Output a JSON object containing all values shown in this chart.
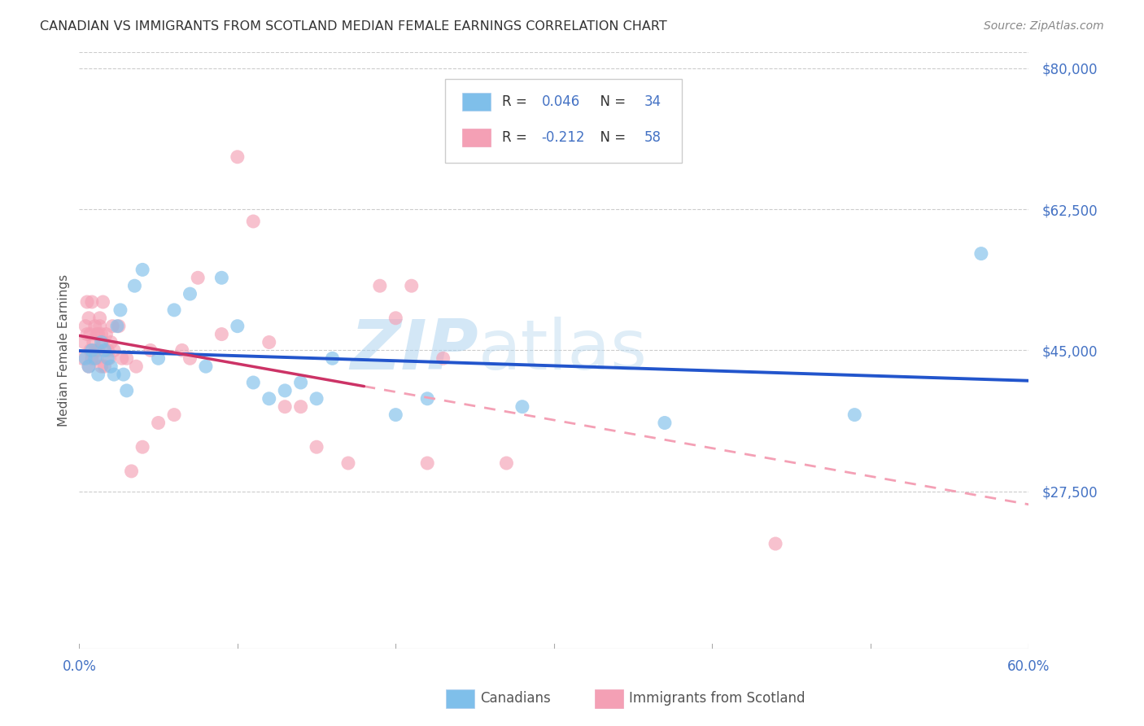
{
  "title": "CANADIAN VS IMMIGRANTS FROM SCOTLAND MEDIAN FEMALE EARNINGS CORRELATION CHART",
  "source": "Source: ZipAtlas.com",
  "ylabel": "Median Female Earnings",
  "xlim": [
    0,
    0.6
  ],
  "ylim": [
    8000,
    82000
  ],
  "yticks": [
    27500,
    45000,
    62500,
    80000
  ],
  "ytick_labels": [
    "$27,500",
    "$45,000",
    "$62,500",
    "$80,000"
  ],
  "xticks": [
    0.0,
    0.1,
    0.2,
    0.3,
    0.4,
    0.5,
    0.6
  ],
  "xtick_labels": [
    "0.0%",
    "",
    "",
    "",
    "",
    "",
    "60.0%"
  ],
  "legend_r1": "R = 0.046",
  "legend_n1": "N = 34",
  "legend_r2": "R = -0.212",
  "legend_n2": "N = 58",
  "blue_color": "#7fbfea",
  "pink_color": "#f4a0b5",
  "blue_line_color": "#2255cc",
  "pink_line_color": "#cc3366",
  "pink_dash_color": "#f4a0b5",
  "watermark": "ZIPatlas",
  "canadians_x": [
    0.004,
    0.006,
    0.008,
    0.01,
    0.012,
    0.014,
    0.016,
    0.018,
    0.02,
    0.022,
    0.024,
    0.026,
    0.028,
    0.03,
    0.035,
    0.04,
    0.05,
    0.06,
    0.07,
    0.08,
    0.09,
    0.1,
    0.11,
    0.12,
    0.13,
    0.14,
    0.15,
    0.16,
    0.2,
    0.22,
    0.28,
    0.37,
    0.49,
    0.57
  ],
  "canadians_y": [
    44000,
    43000,
    45000,
    44000,
    42000,
    46000,
    45000,
    44000,
    43000,
    42000,
    48000,
    50000,
    42000,
    40000,
    53000,
    55000,
    44000,
    50000,
    52000,
    43000,
    54000,
    48000,
    41000,
    39000,
    40000,
    41000,
    39000,
    44000,
    37000,
    39000,
    38000,
    36000,
    37000,
    57000
  ],
  "scotland_x": [
    0.002,
    0.003,
    0.004,
    0.005,
    0.005,
    0.006,
    0.006,
    0.007,
    0.007,
    0.008,
    0.008,
    0.009,
    0.01,
    0.01,
    0.011,
    0.011,
    0.012,
    0.012,
    0.013,
    0.013,
    0.014,
    0.014,
    0.015,
    0.015,
    0.016,
    0.017,
    0.018,
    0.019,
    0.02,
    0.021,
    0.022,
    0.025,
    0.027,
    0.03,
    0.033,
    0.036,
    0.04,
    0.045,
    0.05,
    0.06,
    0.065,
    0.07,
    0.075,
    0.09,
    0.1,
    0.11,
    0.12,
    0.13,
    0.14,
    0.15,
    0.17,
    0.19,
    0.2,
    0.21,
    0.22,
    0.23,
    0.27,
    0.44
  ],
  "scotland_y": [
    44000,
    46000,
    48000,
    47000,
    51000,
    49000,
    43000,
    47000,
    45000,
    51000,
    44000,
    46000,
    48000,
    45000,
    47000,
    44000,
    47000,
    45000,
    49000,
    48000,
    47000,
    43000,
    46000,
    51000,
    43000,
    47000,
    45000,
    44000,
    46000,
    48000,
    45000,
    48000,
    44000,
    44000,
    30000,
    43000,
    33000,
    45000,
    36000,
    37000,
    45000,
    44000,
    54000,
    47000,
    69000,
    61000,
    46000,
    38000,
    38000,
    33000,
    31000,
    53000,
    49000,
    53000,
    31000,
    44000,
    31000,
    21000
  ]
}
